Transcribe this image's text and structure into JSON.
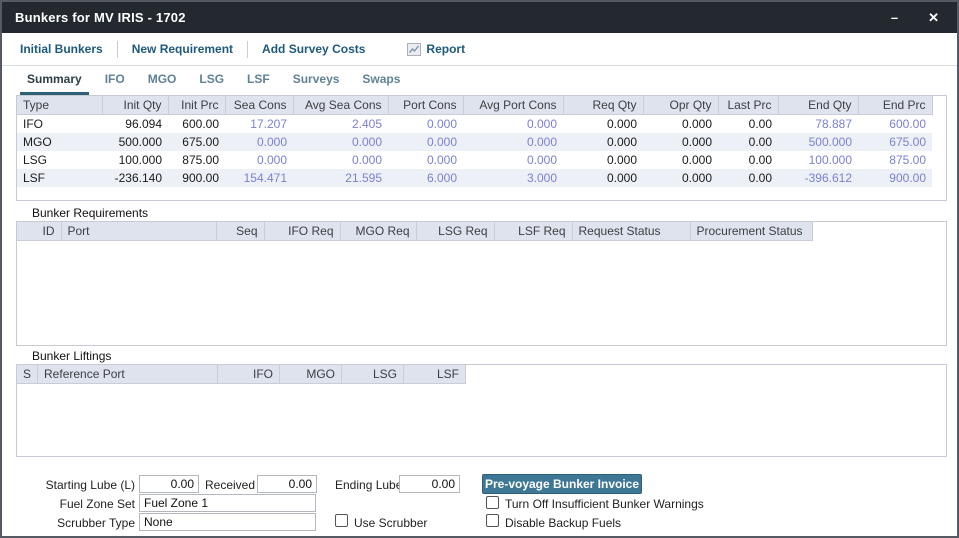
{
  "window": {
    "title": "Bunkers for MV IRIS - 1702",
    "minimize_glyph": "–",
    "close_glyph": "✕"
  },
  "toolbar": {
    "items": [
      "Initial Bunkers",
      "New Requirement",
      "Add Survey Costs"
    ],
    "report_label": "Report",
    "report_icon": "line-chart-icon"
  },
  "tabs": [
    {
      "label": "Summary",
      "active": true
    },
    {
      "label": "IFO",
      "active": false
    },
    {
      "label": "MGO",
      "active": false
    },
    {
      "label": "LSG",
      "active": false
    },
    {
      "label": "LSF",
      "active": false
    },
    {
      "label": "Surveys",
      "active": false
    },
    {
      "label": "Swaps",
      "active": false
    }
  ],
  "summary_table": {
    "columns": [
      "Type",
      "Init Qty",
      "Init Prc",
      "Sea Cons",
      "Avg Sea Cons",
      "Port Cons",
      "Avg Port Cons",
      "Req Qty",
      "Opr Qty",
      "Last Prc",
      "End Qty",
      "End Prc"
    ],
    "rows": [
      [
        "IFO",
        "96.094",
        "600.00",
        "17.207",
        "2.405",
        "0.000",
        "0.000",
        "0.000",
        "0.000",
        "0.00",
        "78.887",
        "600.00"
      ],
      [
        "MGO",
        "500.000",
        "675.00",
        "0.000",
        "0.000",
        "0.000",
        "0.000",
        "0.000",
        "0.000",
        "0.00",
        "500.000",
        "675.00"
      ],
      [
        "LSG",
        "100.000",
        "875.00",
        "0.000",
        "0.000",
        "0.000",
        "0.000",
        "0.000",
        "0.000",
        "0.00",
        "100.000",
        "875.00"
      ],
      [
        "LSF",
        "-236.140",
        "900.00",
        "154.471",
        "21.595",
        "6.000",
        "3.000",
        "0.000",
        "0.000",
        "0.00",
        "-396.612",
        "900.00"
      ]
    ]
  },
  "requirements": {
    "label": "Bunker Requirements",
    "columns": [
      "ID",
      "Port",
      "Seq",
      "IFO Req",
      "MGO Req",
      "LSG Req",
      "LSF Req",
      "Request Status",
      "Procurement Status"
    ],
    "rows": []
  },
  "liftings": {
    "label": "Bunker Liftings",
    "columns": [
      "S",
      "Reference Port",
      "IFO",
      "MGO",
      "LSG",
      "LSF"
    ],
    "rows": []
  },
  "form": {
    "starting_lube": {
      "label": "Starting Lube (L)",
      "value": "0.00"
    },
    "received": {
      "label": "Received",
      "value": "0.00"
    },
    "ending_lube": {
      "label": "Ending Lube",
      "value": "0.00"
    },
    "fuel_zone_set": {
      "label": "Fuel Zone Set",
      "value": "Fuel Zone 1"
    },
    "scrubber_type": {
      "label": "Scrubber Type",
      "value": "None"
    },
    "use_scrubber": {
      "label": "Use Scrubber",
      "checked": false
    },
    "invoice_button": {
      "label": "Pre-voyage Bunker Invoice"
    },
    "turn_off_warnings": {
      "label": "Turn Off Insufficient Bunker Warnings",
      "checked": false
    },
    "disable_backup": {
      "label": "Disable Backup Fuels",
      "checked": false
    }
  },
  "colors": {
    "titlebar_bg": "#24292f",
    "toolbar_link": "#1d5a7d",
    "active_tab_underline": "#2d6075",
    "grid_header_bg": "#dfe3ed",
    "alt_row_bg": "#edf1f7",
    "computed_value": "#7b80d2",
    "button_bg": "#3e7795"
  }
}
